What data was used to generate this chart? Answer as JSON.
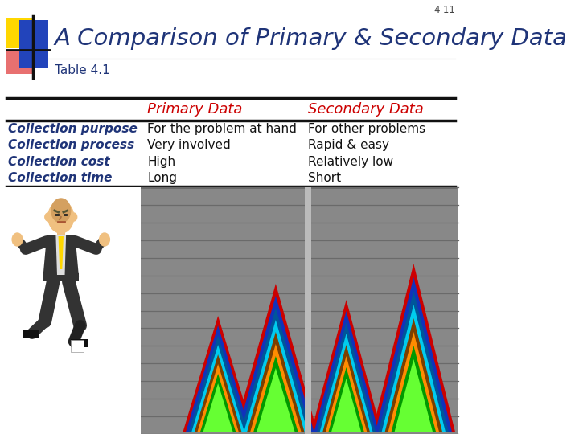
{
  "slide_number": "4-11",
  "title": "A Comparison of Primary & Secondary Data",
  "subtitle": "Table 4.1",
  "title_color": "#1F3478",
  "subtitle_color": "#1F3478",
  "slide_number_color": "#444444",
  "header_col1": "Primary Data",
  "header_col2": "Secondary Data",
  "header_color": "#CC0000",
  "row_label_color": "#1F3478",
  "row_labels": [
    "Collection purpose",
    "Collection process",
    "Collection cost",
    "Collection time"
  ],
  "primary_data": [
    "For the problem at hand",
    "Very involved",
    "High",
    "Long"
  ],
  "secondary_data": [
    "For other problems",
    "Rapid & easy",
    "Relatively low",
    "Short"
  ],
  "data_color": "#111111",
  "bg_color": "#FFFFFF",
  "logo": {
    "yellow": "#FFD700",
    "pink": "#E87070",
    "blue": "#2244BB",
    "black": "#111111"
  },
  "chart_bg": "#888888",
  "chart_stripe": "#6A6A6A",
  "mountain_colors": [
    "#CC0000",
    "#1133BB",
    "#005599",
    "#00CCEE",
    "#7B3F00",
    "#FF8C00",
    "#009900",
    "#66FF33"
  ]
}
